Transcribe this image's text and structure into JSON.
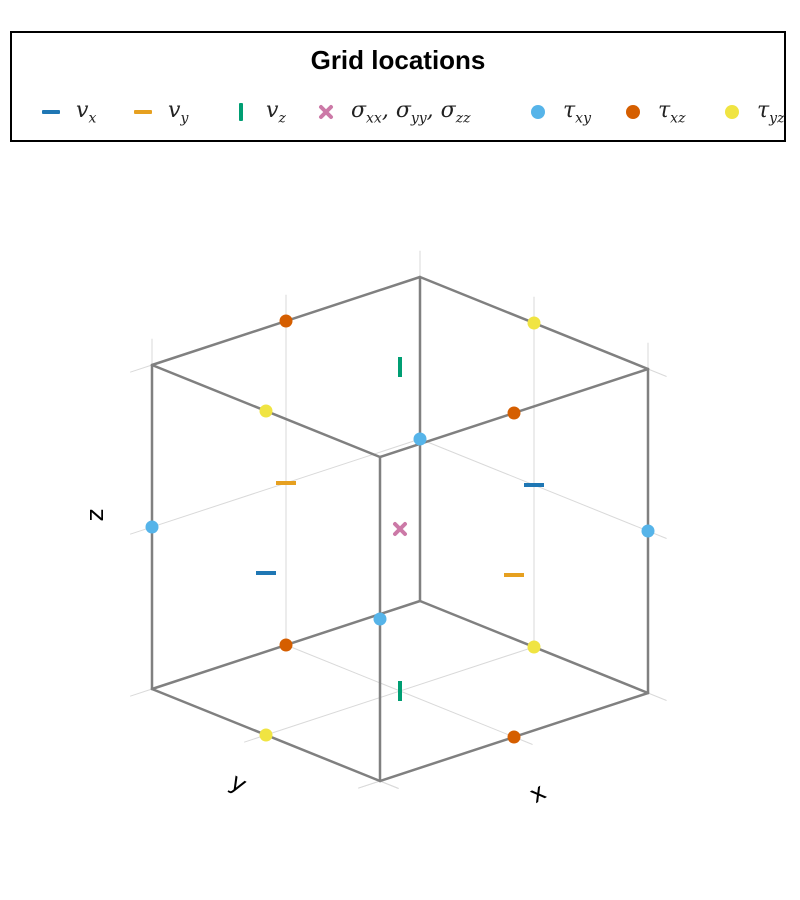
{
  "legend": {
    "title": "Grid locations",
    "entries": [
      {
        "key": "vx",
        "symbol": "v",
        "sub": "x",
        "marker": "hbar",
        "color": "#1f77b4"
      },
      {
        "key": "vy",
        "symbol": "v",
        "sub": "y",
        "marker": "hbar",
        "color": "#e6a020"
      },
      {
        "key": "vz",
        "symbol": "v",
        "sub": "z",
        "marker": "vbar",
        "color": "#009e73"
      },
      {
        "key": "sig",
        "symbol": "σ",
        "sub": "xx",
        "rest": ", σyy, σzz",
        "marker": "cross",
        "color": "#cc79a7"
      },
      {
        "key": "txy",
        "symbol": "τ",
        "sub": "xy",
        "marker": "dot",
        "color": "#56b4e9"
      },
      {
        "key": "txz",
        "symbol": "τ",
        "sub": "xz",
        "marker": "dot",
        "color": "#d55e00"
      },
      {
        "key": "tyz",
        "symbol": "τ",
        "sub": "yz",
        "marker": "dot",
        "color": "#f0e442"
      }
    ]
  },
  "axes": {
    "x_label": "x",
    "y_label": "y",
    "z_label": "z"
  },
  "colors": {
    "cube_edge": "#808080",
    "grid": "#d9d9d9"
  },
  "points": [
    {
      "type": "txy",
      "pos": [
        0,
        0,
        0.5
      ]
    },
    {
      "type": "txy",
      "pos": [
        1,
        0,
        0.5
      ]
    },
    {
      "type": "txy",
      "pos": [
        0,
        1,
        0.5
      ]
    },
    {
      "type": "txy",
      "pos": [
        1,
        1,
        0.5
      ]
    },
    {
      "type": "txz",
      "pos": [
        0.5,
        0,
        0
      ]
    },
    {
      "type": "txz",
      "pos": [
        0.5,
        1,
        0
      ]
    },
    {
      "type": "txz",
      "pos": [
        0.5,
        0,
        1
      ]
    },
    {
      "type": "txz",
      "pos": [
        0.5,
        1,
        1
      ]
    },
    {
      "type": "tyz",
      "pos": [
        0,
        0.5,
        0
      ]
    },
    {
      "type": "tyz",
      "pos": [
        1,
        0.5,
        0
      ]
    },
    {
      "type": "tyz",
      "pos": [
        0,
        0.5,
        1
      ]
    },
    {
      "type": "tyz",
      "pos": [
        1,
        0.5,
        1
      ]
    },
    {
      "type": "vx",
      "pos": [
        0,
        0.5,
        0.5
      ]
    },
    {
      "type": "vx",
      "pos": [
        1,
        0.5,
        0.5
      ]
    },
    {
      "type": "vy",
      "pos": [
        0.5,
        0,
        0.5
      ]
    },
    {
      "type": "vy",
      "pos": [
        0.5,
        1,
        0.5
      ]
    },
    {
      "type": "vz",
      "pos": [
        0.5,
        0.5,
        0
      ]
    },
    {
      "type": "vz",
      "pos": [
        0.5,
        0.5,
        1
      ]
    },
    {
      "type": "sig",
      "pos": [
        0.5,
        0.5,
        0.5
      ]
    }
  ]
}
